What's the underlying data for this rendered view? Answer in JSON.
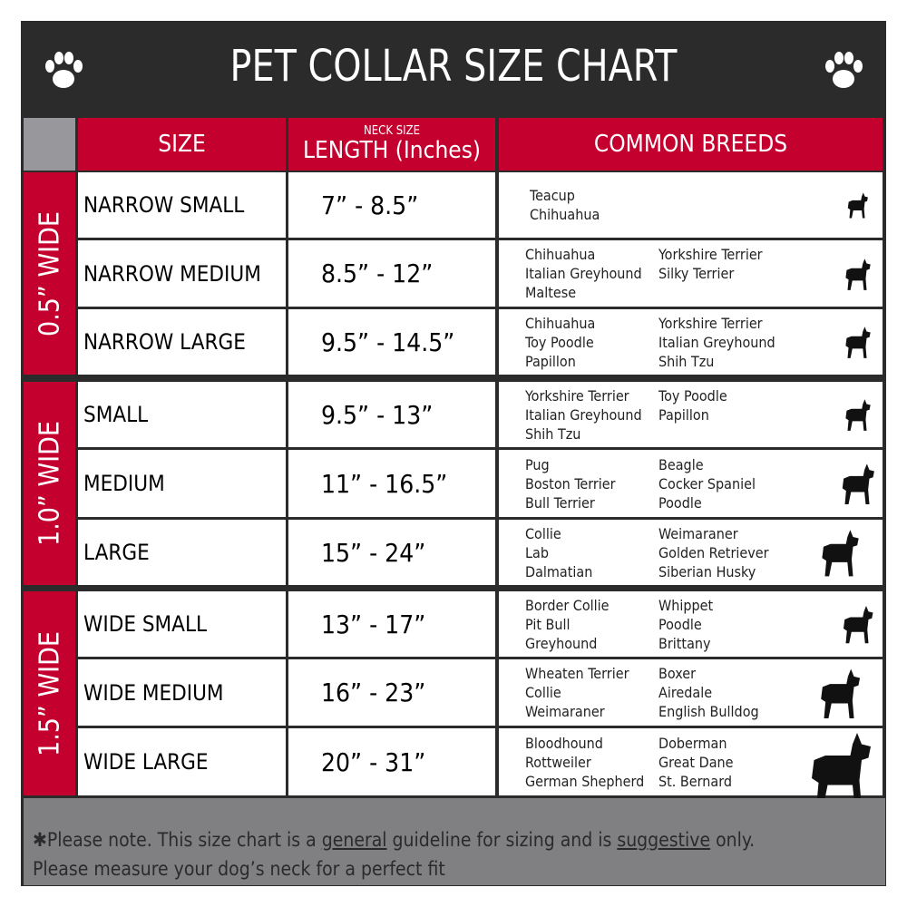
{
  "title": "PET COLLAR SIZE CHART",
  "header": {
    "size": "SIZE",
    "length_small": "NECK SIZE",
    "length": "LENGTH (Inches)",
    "breeds": "COMMON BREEDS"
  },
  "colors": {
    "red": "#c4002f",
    "dark": "#2b2b2b",
    "gray": "#808083"
  },
  "icons": [
    "paw-print-icon",
    "dog-silhouette-icon"
  ],
  "groups": [
    {
      "label": "0.5” WIDE",
      "rows": [
        {
          "size": "NARROW SMALL",
          "length": "7” - 8.5”",
          "breeds_1": [
            "Teacup",
            "Chihuahua"
          ],
          "breeds_2": []
        },
        {
          "size": "NARROW MEDIUM",
          "length": "8.5” - 12”",
          "breeds_1": [
            "Chihuahua",
            "Italian Greyhound",
            "Maltese"
          ],
          "breeds_2": [
            "Yorkshire Terrier",
            "Silky Terrier"
          ]
        },
        {
          "size": "NARROW LARGE",
          "length": "9.5” - 14.5”",
          "breeds_1": [
            "Chihuahua",
            "Toy Poodle",
            "Papillon"
          ],
          "breeds_2": [
            "Yorkshire Terrier",
            "Italian Greyhound",
            "Shih Tzu"
          ]
        }
      ]
    },
    {
      "label": "1.0” WIDE",
      "rows": [
        {
          "size": "SMALL",
          "length": "9.5” - 13”",
          "breeds_1": [
            "Yorkshire Terrier",
            "Italian Greyhound",
            "Shih Tzu"
          ],
          "breeds_2": [
            "Toy Poodle",
            "Papillon"
          ]
        },
        {
          "size": "MEDIUM",
          "length": "11” - 16.5”",
          "breeds_1": [
            "Pug",
            "Boston Terrier",
            "Bull Terrier"
          ],
          "breeds_2": [
            "Beagle",
            "Cocker Spaniel",
            "Poodle"
          ]
        },
        {
          "size": "LARGE",
          "length": "15” - 24”",
          "breeds_1": [
            "Collie",
            "Lab",
            "Dalmatian"
          ],
          "breeds_2": [
            "Weimaraner",
            "Golden Retriever",
            "Siberian Husky"
          ]
        }
      ]
    },
    {
      "label": "1.5” WIDE",
      "rows": [
        {
          "size": "WIDE SMALL",
          "length": "13” - 17”",
          "breeds_1": [
            "Border Collie",
            "Pit Bull",
            "Greyhound"
          ],
          "breeds_2": [
            "Whippet",
            "Poodle",
            "Brittany"
          ]
        },
        {
          "size": "WIDE MEDIUM",
          "length": "16” - 23”",
          "breeds_1": [
            "Wheaten Terrier",
            "Collie",
            "Weimaraner"
          ],
          "breeds_2": [
            "Boxer",
            "Airedale",
            "English Bulldog"
          ]
        },
        {
          "size": "WIDE LARGE",
          "length": "20” - 31”",
          "breeds_1": [
            "Bloodhound",
            "Rottweiler",
            "German Shepherd"
          ],
          "breeds_2": [
            "Doberman",
            "Great Dane",
            "St. Bernard"
          ]
        }
      ]
    }
  ],
  "footer": {
    "prefix": "✱Please note. This size chart is a ",
    "general": "general",
    "middle": " guideline for sizing and is ",
    "suggestive": "suggestive",
    "suffix": " only.",
    "line2": "Please measure your dog’s neck for a perfect fit"
  }
}
